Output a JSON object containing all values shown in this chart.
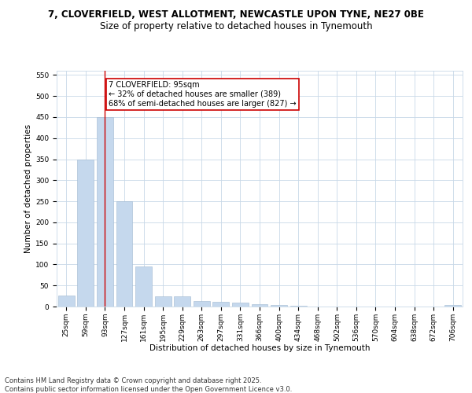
{
  "title_line1": "7, CLOVERFIELD, WEST ALLOTMENT, NEWCASTLE UPON TYNE, NE27 0BE",
  "title_line2": "Size of property relative to detached houses in Tynemouth",
  "xlabel": "Distribution of detached houses by size in Tynemouth",
  "ylabel": "Number of detached properties",
  "categories": [
    "25sqm",
    "59sqm",
    "93sqm",
    "127sqm",
    "161sqm",
    "195sqm",
    "229sqm",
    "263sqm",
    "297sqm",
    "331sqm",
    "366sqm",
    "400sqm",
    "434sqm",
    "468sqm",
    "502sqm",
    "536sqm",
    "570sqm",
    "604sqm",
    "638sqm",
    "672sqm",
    "706sqm"
  ],
  "values": [
    27,
    350,
    450,
    250,
    95,
    25,
    25,
    13,
    11,
    9,
    5,
    4,
    1,
    0,
    0,
    0,
    0,
    0,
    0,
    0,
    4
  ],
  "bar_color": "#c5d8ed",
  "bar_edge_color": "#a0b8d0",
  "vline_x": 2,
  "vline_color": "#cc0000",
  "annotation_line1": "7 CLOVERFIELD: 95sqm",
  "annotation_line2": "← 32% of detached houses are smaller (389)",
  "annotation_line3": "68% of semi-detached houses are larger (827) →",
  "annotation_box_color": "#cc0000",
  "ylim": [
    0,
    560
  ],
  "yticks": [
    0,
    50,
    100,
    150,
    200,
    250,
    300,
    350,
    400,
    450,
    500,
    550
  ],
  "bg_color": "#ffffff",
  "grid_color": "#c8d8e8",
  "footer_line1": "Contains HM Land Registry data © Crown copyright and database right 2025.",
  "footer_line2": "Contains public sector information licensed under the Open Government Licence v3.0.",
  "title_fontsize": 8.5,
  "subtitle_fontsize": 8.5,
  "axis_label_fontsize": 7.5,
  "tick_fontsize": 6.5,
  "annotation_fontsize": 7.0,
  "footer_fontsize": 6.0
}
